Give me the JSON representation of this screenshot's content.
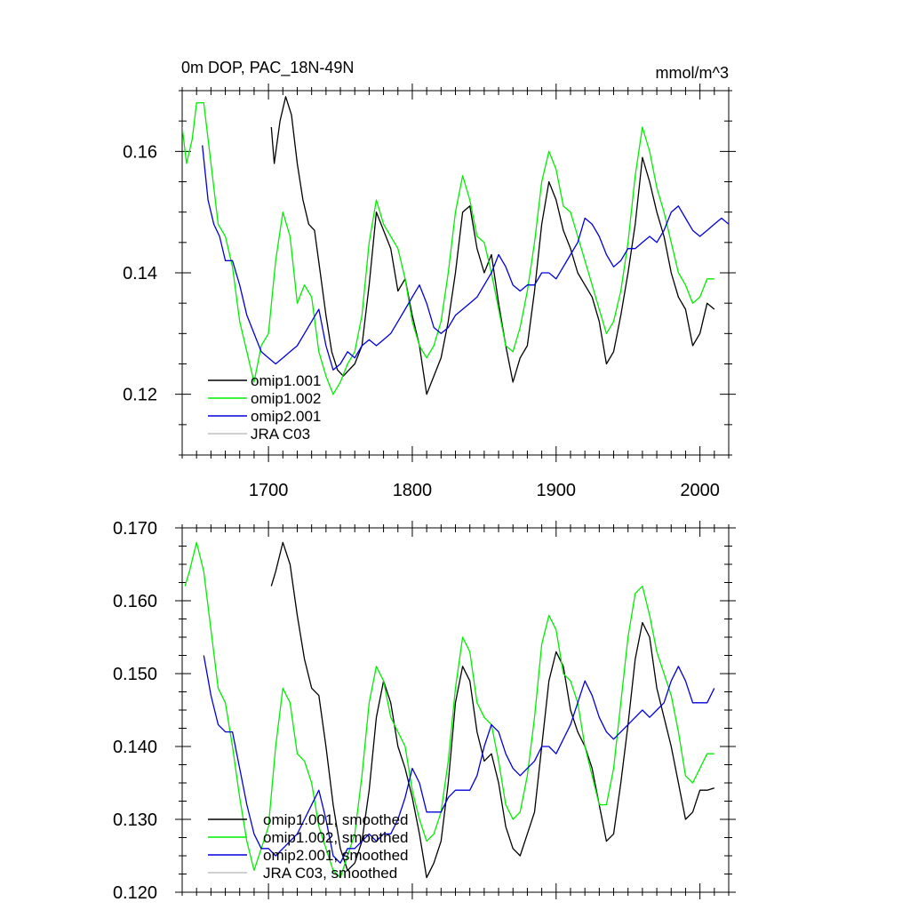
{
  "chart_data": [
    {
      "type": "line",
      "title": "0m DOP, PAC_18N-49N",
      "units": "mmol/m^3",
      "xlim": [
        1640,
        2020
      ],
      "ylim": [
        0.11,
        0.17
      ],
      "xticks": [
        1700,
        1800,
        1900,
        2000
      ],
      "xtick_labels": [
        "1700",
        "1800",
        "1900",
        "2000"
      ],
      "yticks": [
        0.12,
        0.14,
        0.16
      ],
      "ytick_labels": [
        "0.12",
        "0.14",
        "0.16"
      ],
      "legend_position": "bottom-left",
      "series": [
        {
          "name": "omip1.001",
          "color": "#000000",
          "x": [
            1702,
            1704,
            1708,
            1712,
            1716,
            1720,
            1724,
            1728,
            1732,
            1736,
            1740,
            1744,
            1748,
            1752,
            1756,
            1760,
            1765,
            1770,
            1775,
            1780,
            1785,
            1790,
            1795,
            1800,
            1805,
            1810,
            1815,
            1820,
            1825,
            1830,
            1835,
            1840,
            1845,
            1850,
            1855,
            1860,
            1865,
            1870,
            1875,
            1880,
            1885,
            1890,
            1895,
            1900,
            1905,
            1910,
            1915,
            1920,
            1925,
            1930,
            1935,
            1940,
            1945,
            1950,
            1955,
            1960,
            1965,
            1970,
            1975,
            1980,
            1985,
            1990,
            1995,
            2000,
            2005,
            2010
          ],
          "values": [
            0.164,
            0.158,
            0.165,
            0.169,
            0.166,
            0.158,
            0.152,
            0.148,
            0.147,
            0.14,
            0.133,
            0.127,
            0.124,
            0.123,
            0.124,
            0.125,
            0.128,
            0.138,
            0.15,
            0.147,
            0.144,
            0.137,
            0.139,
            0.133,
            0.128,
            0.12,
            0.123,
            0.126,
            0.132,
            0.14,
            0.15,
            0.151,
            0.144,
            0.14,
            0.143,
            0.135,
            0.128,
            0.122,
            0.126,
            0.128,
            0.137,
            0.148,
            0.155,
            0.152,
            0.147,
            0.144,
            0.14,
            0.138,
            0.136,
            0.132,
            0.125,
            0.127,
            0.133,
            0.14,
            0.148,
            0.159,
            0.155,
            0.15,
            0.146,
            0.14,
            0.136,
            0.134,
            0.128,
            0.13,
            0.135,
            0.134
          ]
        },
        {
          "name": "omip1.002",
          "color": "#00ee00",
          "x": [
            1640,
            1643,
            1647,
            1650,
            1655,
            1660,
            1665,
            1670,
            1675,
            1680,
            1685,
            1690,
            1695,
            1700,
            1705,
            1710,
            1715,
            1720,
            1725,
            1730,
            1735,
            1740,
            1745,
            1750,
            1755,
            1760,
            1765,
            1770,
            1775,
            1780,
            1785,
            1790,
            1795,
            1800,
            1805,
            1810,
            1815,
            1820,
            1825,
            1830,
            1835,
            1840,
            1845,
            1850,
            1855,
            1860,
            1865,
            1870,
            1875,
            1880,
            1885,
            1890,
            1895,
            1900,
            1905,
            1910,
            1915,
            1920,
            1925,
            1930,
            1935,
            1940,
            1945,
            1950,
            1955,
            1960,
            1965,
            1970,
            1975,
            1980,
            1985,
            1990,
            1995,
            2000,
            2005,
            2010
          ],
          "values": [
            0.164,
            0.158,
            0.162,
            0.168,
            0.168,
            0.158,
            0.148,
            0.146,
            0.141,
            0.132,
            0.127,
            0.122,
            0.128,
            0.13,
            0.142,
            0.15,
            0.146,
            0.135,
            0.138,
            0.136,
            0.127,
            0.123,
            0.12,
            0.122,
            0.125,
            0.127,
            0.133,
            0.145,
            0.152,
            0.148,
            0.146,
            0.144,
            0.139,
            0.132,
            0.128,
            0.126,
            0.128,
            0.132,
            0.14,
            0.15,
            0.156,
            0.152,
            0.146,
            0.145,
            0.14,
            0.134,
            0.128,
            0.127,
            0.131,
            0.137,
            0.145,
            0.155,
            0.16,
            0.157,
            0.151,
            0.15,
            0.146,
            0.142,
            0.138,
            0.134,
            0.13,
            0.132,
            0.137,
            0.145,
            0.156,
            0.164,
            0.16,
            0.154,
            0.15,
            0.145,
            0.14,
            0.138,
            0.135,
            0.136,
            0.139,
            0.139
          ]
        },
        {
          "name": "omip2.001",
          "color": "#0000dd",
          "x": [
            1654,
            1658,
            1662,
            1666,
            1670,
            1675,
            1680,
            1685,
            1690,
            1695,
            1700,
            1705,
            1710,
            1715,
            1720,
            1725,
            1730,
            1735,
            1740,
            1745,
            1750,
            1755,
            1760,
            1765,
            1770,
            1775,
            1780,
            1785,
            1790,
            1795,
            1800,
            1805,
            1810,
            1815,
            1820,
            1825,
            1830,
            1835,
            1840,
            1845,
            1850,
            1855,
            1860,
            1865,
            1870,
            1875,
            1880,
            1885,
            1890,
            1895,
            1900,
            1905,
            1910,
            1915,
            1920,
            1925,
            1930,
            1935,
            1940,
            1945,
            1950,
            1955,
            1960,
            1965,
            1970,
            1975,
            1980,
            1985,
            1990,
            1995,
            2000,
            2005,
            2010,
            2015,
            2020
          ],
          "values": [
            0.161,
            0.152,
            0.148,
            0.146,
            0.142,
            0.142,
            0.138,
            0.133,
            0.13,
            0.127,
            0.126,
            0.125,
            0.126,
            0.127,
            0.128,
            0.13,
            0.132,
            0.134,
            0.128,
            0.124,
            0.125,
            0.127,
            0.126,
            0.128,
            0.129,
            0.128,
            0.129,
            0.13,
            0.132,
            0.134,
            0.136,
            0.138,
            0.135,
            0.131,
            0.13,
            0.131,
            0.133,
            0.134,
            0.135,
            0.136,
            0.138,
            0.14,
            0.143,
            0.141,
            0.138,
            0.137,
            0.138,
            0.138,
            0.14,
            0.14,
            0.139,
            0.141,
            0.143,
            0.145,
            0.149,
            0.148,
            0.146,
            0.143,
            0.141,
            0.142,
            0.144,
            0.144,
            0.145,
            0.146,
            0.145,
            0.147,
            0.15,
            0.151,
            0.149,
            0.147,
            0.146,
            0.147,
            0.148,
            0.149,
            0.148
          ]
        },
        {
          "name": "JRA C03",
          "color": "#c0c0c0",
          "x": [],
          "values": []
        }
      ]
    },
    {
      "type": "line",
      "xlim": [
        1640,
        2020
      ],
      "ylim": [
        0.12,
        0.17
      ],
      "xticks": [
        1700,
        1800,
        1900,
        2000
      ],
      "yticks": [
        0.12,
        0.13,
        0.14,
        0.15,
        0.16,
        0.17
      ],
      "ytick_labels": [
        "0.120",
        "0.130",
        "0.140",
        "0.150",
        "0.160",
        "0.170"
      ],
      "legend_position": "bottom-left",
      "series": [
        {
          "name": "omip1.001, smoothed",
          "color": "#000000",
          "x": [
            1702,
            1705,
            1710,
            1715,
            1720,
            1725,
            1730,
            1735,
            1740,
            1745,
            1750,
            1755,
            1760,
            1765,
            1770,
            1775,
            1780,
            1785,
            1790,
            1795,
            1800,
            1805,
            1810,
            1815,
            1820,
            1825,
            1830,
            1835,
            1840,
            1845,
            1850,
            1855,
            1860,
            1865,
            1870,
            1875,
            1880,
            1885,
            1890,
            1895,
            1900,
            1905,
            1910,
            1915,
            1920,
            1925,
            1930,
            1935,
            1940,
            1945,
            1950,
            1955,
            1960,
            1965,
            1970,
            1975,
            1980,
            1985,
            1990,
            1995,
            2000,
            2005,
            2010
          ],
          "values": [
            0.162,
            0.164,
            0.168,
            0.165,
            0.158,
            0.152,
            0.148,
            0.147,
            0.14,
            0.132,
            0.126,
            0.123,
            0.124,
            0.127,
            0.134,
            0.144,
            0.149,
            0.146,
            0.14,
            0.137,
            0.133,
            0.128,
            0.122,
            0.124,
            0.127,
            0.135,
            0.146,
            0.151,
            0.149,
            0.142,
            0.138,
            0.139,
            0.135,
            0.129,
            0.126,
            0.125,
            0.128,
            0.131,
            0.14,
            0.149,
            0.153,
            0.151,
            0.145,
            0.142,
            0.14,
            0.137,
            0.132,
            0.127,
            0.128,
            0.135,
            0.143,
            0.152,
            0.157,
            0.155,
            0.148,
            0.144,
            0.14,
            0.135,
            0.13,
            0.131,
            0.134,
            0.134,
            0.1343
          ]
        },
        {
          "name": "omip1.002, smoothed",
          "color": "#00ee00",
          "x": [
            1642,
            1645,
            1650,
            1655,
            1660,
            1665,
            1670,
            1675,
            1680,
            1685,
            1690,
            1695,
            1700,
            1705,
            1710,
            1715,
            1720,
            1725,
            1730,
            1735,
            1740,
            1745,
            1750,
            1755,
            1760,
            1765,
            1770,
            1775,
            1780,
            1785,
            1790,
            1795,
            1800,
            1805,
            1810,
            1815,
            1820,
            1825,
            1830,
            1835,
            1840,
            1845,
            1850,
            1855,
            1860,
            1865,
            1870,
            1875,
            1880,
            1885,
            1890,
            1895,
            1900,
            1905,
            1910,
            1915,
            1920,
            1925,
            1930,
            1935,
            1940,
            1945,
            1950,
            1955,
            1960,
            1965,
            1970,
            1975,
            1980,
            1985,
            1990,
            1995,
            2000,
            2005,
            2010
          ],
          "values": [
            0.162,
            0.164,
            0.168,
            0.164,
            0.156,
            0.148,
            0.146,
            0.14,
            0.133,
            0.127,
            0.123,
            0.126,
            0.129,
            0.14,
            0.148,
            0.146,
            0.139,
            0.138,
            0.135,
            0.129,
            0.126,
            0.123,
            0.122,
            0.125,
            0.128,
            0.136,
            0.146,
            0.151,
            0.149,
            0.144,
            0.142,
            0.14,
            0.134,
            0.13,
            0.127,
            0.128,
            0.131,
            0.138,
            0.148,
            0.155,
            0.153,
            0.146,
            0.144,
            0.143,
            0.138,
            0.132,
            0.13,
            0.131,
            0.136,
            0.144,
            0.154,
            0.158,
            0.156,
            0.15,
            0.149,
            0.146,
            0.14,
            0.136,
            0.132,
            0.132,
            0.137,
            0.146,
            0.155,
            0.161,
            0.162,
            0.158,
            0.153,
            0.15,
            0.147,
            0.142,
            0.136,
            0.135,
            0.137,
            0.139,
            0.139
          ]
        },
        {
          "name": "omip2.001, smoothed",
          "color": "#0000dd",
          "x": [
            1655,
            1660,
            1665,
            1670,
            1675,
            1680,
            1685,
            1690,
            1695,
            1700,
            1705,
            1710,
            1715,
            1720,
            1725,
            1730,
            1735,
            1740,
            1745,
            1750,
            1755,
            1760,
            1765,
            1770,
            1775,
            1780,
            1785,
            1790,
            1795,
            1800,
            1805,
            1810,
            1815,
            1820,
            1825,
            1830,
            1835,
            1840,
            1845,
            1850,
            1855,
            1860,
            1865,
            1870,
            1875,
            1880,
            1885,
            1890,
            1895,
            1900,
            1905,
            1910,
            1915,
            1920,
            1925,
            1930,
            1935,
            1940,
            1945,
            1950,
            1955,
            1960,
            1965,
            1970,
            1975,
            1980,
            1985,
            1990,
            1995,
            2000,
            2005,
            2010
          ],
          "values": [
            0.1525,
            0.147,
            0.143,
            0.142,
            0.142,
            0.137,
            0.132,
            0.128,
            0.126,
            0.126,
            0.125,
            0.126,
            0.127,
            0.128,
            0.13,
            0.132,
            0.134,
            0.13,
            0.125,
            0.124,
            0.126,
            0.126,
            0.127,
            0.128,
            0.127,
            0.128,
            0.128,
            0.13,
            0.133,
            0.137,
            0.135,
            0.131,
            0.131,
            0.131,
            0.133,
            0.134,
            0.134,
            0.134,
            0.136,
            0.14,
            0.143,
            0.142,
            0.139,
            0.137,
            0.136,
            0.137,
            0.138,
            0.14,
            0.14,
            0.139,
            0.141,
            0.143,
            0.146,
            0.149,
            0.147,
            0.144,
            0.142,
            0.141,
            0.142,
            0.143,
            0.144,
            0.145,
            0.144,
            0.145,
            0.146,
            0.149,
            0.151,
            0.149,
            0.146,
            0.146,
            0.146,
            0.148
          ]
        },
        {
          "name": "JRA C03, smoothed",
          "color": "#c0c0c0",
          "x": [],
          "values": []
        }
      ]
    }
  ]
}
